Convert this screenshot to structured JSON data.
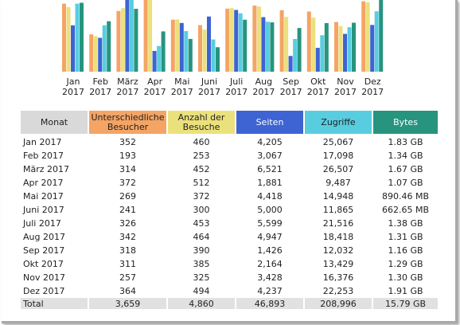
{
  "chart_data": {
    "type": "bar",
    "categories": [
      [
        "Jan",
        "2017"
      ],
      [
        "Feb",
        "2017"
      ],
      [
        "März",
        "2017"
      ],
      [
        "Apr",
        "2017"
      ],
      [
        "Mai",
        "2017"
      ],
      [
        "Juni",
        "2017"
      ],
      [
        "Juli",
        "2017"
      ],
      [
        "Aug",
        "2017"
      ],
      [
        "Sep",
        "2017"
      ],
      [
        "Okt",
        "2017"
      ],
      [
        "Nov",
        "2017"
      ],
      [
        "Dez",
        "2017"
      ]
    ],
    "series": [
      {
        "name": "Unterschiedliche Besucher",
        "color": "#f4a464",
        "values": [
          352,
          193,
          314,
          372,
          269,
          241,
          326,
          342,
          318,
          311,
          257,
          364
        ]
      },
      {
        "name": "Anzahl der Besuche",
        "color": "#ebe17c",
        "values": [
          460,
          253,
          452,
          512,
          372,
          300,
          453,
          464,
          390,
          385,
          325,
          494
        ]
      },
      {
        "name": "Seiten",
        "color": "#3e63d2",
        "values": [
          4205,
          3067,
          6521,
          1881,
          4418,
          5000,
          5599,
          4947,
          1426,
          2164,
          3428,
          4237
        ]
      },
      {
        "name": "Zugriffe",
        "color": "#58cde0",
        "values": [
          25067,
          17098,
          26507,
          9487,
          14948,
          11865,
          21516,
          18418,
          12032,
          13429,
          16376,
          22253
        ]
      },
      {
        "name": "Bytes",
        "color": "#27947f",
        "values": [
          1.83,
          1.34,
          1.67,
          1.07,
          0.87,
          0.65,
          1.38,
          1.31,
          1.16,
          1.29,
          1.3,
          1.91
        ]
      }
    ]
  },
  "table": {
    "headers": [
      [
        "Monat"
      ],
      [
        "Unterschiedliche",
        "Besucher"
      ],
      [
        "Anzahl der",
        "Besuche"
      ],
      [
        "Seiten"
      ],
      [
        "Zugriffe"
      ],
      [
        "Bytes"
      ]
    ],
    "rows": [
      [
        "Jan 2017",
        "352",
        "460",
        "4,205",
        "25,067",
        "1.83 GB"
      ],
      [
        "Feb 2017",
        "193",
        "253",
        "3,067",
        "17,098",
        "1.34 GB"
      ],
      [
        "März 2017",
        "314",
        "452",
        "6,521",
        "26,507",
        "1.67 GB"
      ],
      [
        "Apr 2017",
        "372",
        "512",
        "1,881",
        "9,487",
        "1.07 GB"
      ],
      [
        "Mai 2017",
        "269",
        "372",
        "4,418",
        "14,948",
        "890.46 MB"
      ],
      [
        "Juni 2017",
        "241",
        "300",
        "5,000",
        "11,865",
        "662.65 MB"
      ],
      [
        "Juli 2017",
        "326",
        "453",
        "5,599",
        "21,516",
        "1.38 GB"
      ],
      [
        "Aug 2017",
        "342",
        "464",
        "4,947",
        "18,418",
        "1.31 GB"
      ],
      [
        "Sep 2017",
        "318",
        "390",
        "1,426",
        "12,032",
        "1.16 GB"
      ],
      [
        "Okt 2017",
        "311",
        "385",
        "2,164",
        "13,429",
        "1.29 GB"
      ],
      [
        "Nov 2017",
        "257",
        "325",
        "3,428",
        "16,376",
        "1.30 GB"
      ],
      [
        "Dez 2017",
        "364",
        "494",
        "4,237",
        "22,253",
        "1.91 GB"
      ]
    ],
    "total": [
      "Total",
      "3,659",
      "4,860",
      "46,893",
      "208,996",
      "15.79 GB"
    ]
  }
}
